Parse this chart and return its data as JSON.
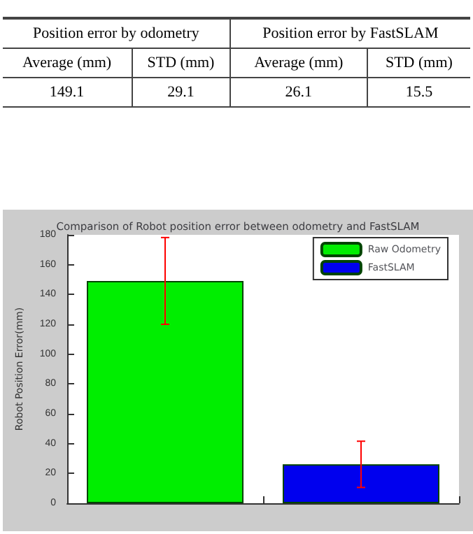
{
  "chart_data": {
    "type": "bar",
    "title": "Comparison of Robot position error between odometry and FastSLAM",
    "ylabel": "Robot Position Error(mm)",
    "categories": [
      null,
      null
    ],
    "series": [
      {
        "name": "Raw Odometry",
        "color": "#00ee00",
        "values": [
          149.1,
          null
        ],
        "errors": [
          29.1,
          null
        ]
      },
      {
        "name": "FastSLAM",
        "color": "#0000ee",
        "values": [
          null,
          26.1
        ],
        "errors": [
          null,
          15.5
        ]
      }
    ],
    "ylim": [
      0,
      180
    ],
    "yticks": [
      0,
      20,
      40,
      60,
      80,
      100,
      120,
      140,
      160,
      180
    ],
    "grid": false,
    "legend": "top right",
    "annotations": [
      "Position error by odometry",
      "Position error by FastSLAM",
      "Average (mm)",
      "STD (mm)",
      "Average (mm)",
      "STD (mm)",
      "149.1",
      "29.1",
      "26.1",
      "15.5"
    ]
  }
}
